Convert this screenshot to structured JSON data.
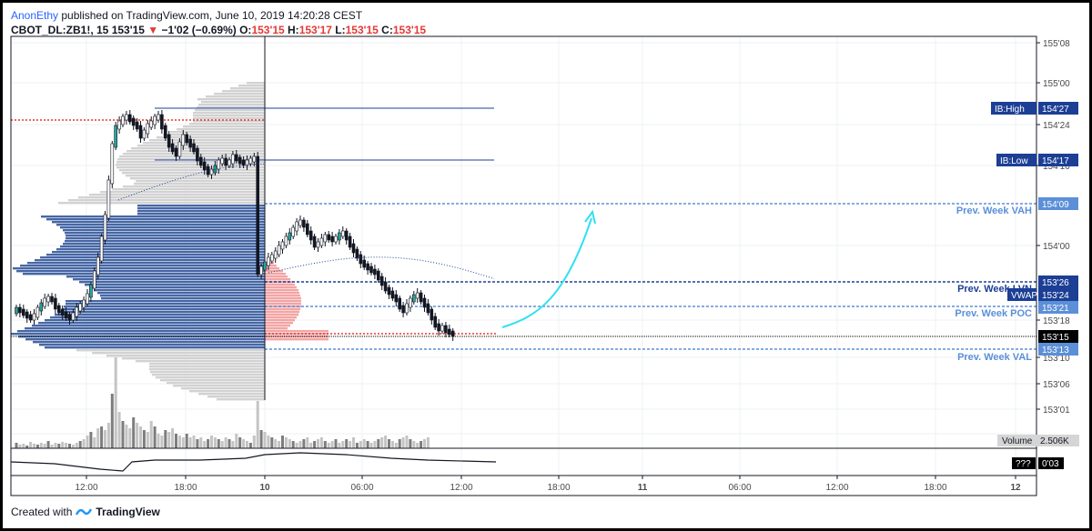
{
  "header": {
    "author": "AnonEthy",
    "published_text": " published on TradingView.com, June 10, 2019 14:20:28 CEST",
    "symbol": "CBOT_DL:ZB1!, 15",
    "last_price": "153'15",
    "change": "−1'02 (−0.69%)",
    "open_label": "O:",
    "open": "153'15",
    "high_label": "H:",
    "high": "153'17",
    "low_label": "L:",
    "low": "153'15",
    "close_label": "C:",
    "close": "153'15"
  },
  "price_axis": {
    "ticks": [
      "155'08",
      "155'00",
      "154'24",
      "154'16",
      "154'00",
      "153'18",
      "153'10",
      "153'06",
      "153'01"
    ],
    "labels": [
      {
        "text": "IB:High",
        "value": "154'27",
        "color": "#1c3f95"
      },
      {
        "text": "IB:Low",
        "value": "154'17",
        "color": "#1c3f95"
      },
      {
        "text": "",
        "value": "154'09",
        "color": "#5b8fd8"
      },
      {
        "text": "",
        "value": "153'26",
        "color": "#1c3f95"
      },
      {
        "text": "VWAP",
        "value": "153'24",
        "color": "#1c3f95"
      },
      {
        "text": "",
        "value": "153'21",
        "color": "#5b8fd8"
      },
      {
        "text": "",
        "value": "153'15",
        "color": "#000000"
      },
      {
        "text": "",
        "value": "153'13",
        "color": "#5b8fd8"
      }
    ],
    "level_texts": [
      {
        "text": "Prev. Week VAH",
        "color": "#5b8fd8"
      },
      {
        "text": "Prev. Week LVN",
        "color": "#1c3f95"
      },
      {
        "text": "Prev. Week POC",
        "color": "#5b8fd8"
      },
      {
        "text": "Prev. Week VAL",
        "color": "#5b8fd8"
      }
    ]
  },
  "volume_pane": {
    "label": "Volume",
    "value": "2.506K"
  },
  "indicator_pane": {
    "label": "???",
    "value": "0'03"
  },
  "time_axis": {
    "ticks": [
      "12:00",
      "18:00",
      "10",
      "06:00",
      "12:00",
      "18:00",
      "11",
      "06:00",
      "12:00",
      "18:00",
      "12"
    ]
  },
  "footer": {
    "created_with": "Created with",
    "brand": "TradingView"
  },
  "colors": {
    "profile_blue": "#3c5fa0",
    "profile_grey": "#d0d0d0",
    "profile_red": "#f4a4a4",
    "poc_red": "#e53935",
    "level_blue_dark": "#1c3f95",
    "level_blue_light": "#5b8fd8",
    "arrow": "#2fe0f4",
    "up_candle": "#26a69a"
  }
}
